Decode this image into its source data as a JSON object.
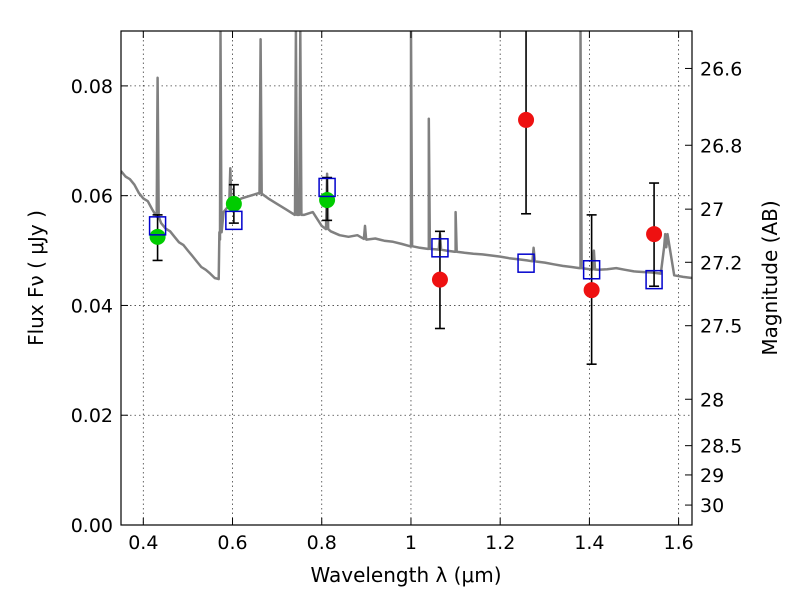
{
  "chart_data": {
    "type": "scatter",
    "title": "",
    "xlabel": "Wavelength  λ (μm)",
    "ylabel": "Flux  Fν  ( μJy )",
    "y2label": "Magnitude (AB)",
    "xlim": [
      0.35,
      1.63
    ],
    "ylim": [
      0.0,
      0.09
    ],
    "grid": true,
    "x_ticks": [
      0.4,
      0.6,
      0.8,
      1.0,
      1.2,
      1.4,
      1.6
    ],
    "x_tick_labels": [
      "0.4",
      "0.6",
      "0.8",
      "1",
      "1.2",
      "1.4",
      "1.6"
    ],
    "y_ticks": [
      0.0,
      0.02,
      0.04,
      0.06,
      0.08
    ],
    "y_tick_labels": [
      "0.00",
      "0.02",
      "0.04",
      "0.06",
      "0.08"
    ],
    "y2_ticks": [
      26.6,
      26.8,
      27,
      27.2,
      27.5,
      28,
      28.5,
      29,
      30
    ],
    "y2_tick_labels": [
      "26.6",
      "26.8",
      "27",
      "27.2",
      "27.5",
      "28",
      "28.5",
      "29",
      "30"
    ],
    "colors": {
      "model": "#808080",
      "green": "#00cc00",
      "red": "#ee1111",
      "box": "#0000cc",
      "errorbar": "#000000"
    },
    "model_spectrum": {
      "x": [
        0.35,
        0.36,
        0.37,
        0.38,
        0.39,
        0.4,
        0.41,
        0.42,
        0.43,
        0.44,
        0.45,
        0.46,
        0.47,
        0.48,
        0.49,
        0.5,
        0.51,
        0.52,
        0.53,
        0.54,
        0.55,
        0.56,
        0.569,
        0.572,
        0.575,
        0.58,
        0.59,
        0.6,
        0.62,
        0.64,
        0.66,
        0.68,
        0.7,
        0.72,
        0.74,
        0.76,
        0.78,
        0.8,
        0.82,
        0.84,
        0.86,
        0.88,
        0.9,
        0.92,
        0.94,
        0.96,
        0.98,
        1.0,
        1.02,
        1.04,
        1.06,
        1.08,
        1.1,
        1.12,
        1.14,
        1.16,
        1.18,
        1.2,
        1.22,
        1.24,
        1.26,
        1.28,
        1.3,
        1.32,
        1.34,
        1.36,
        1.38,
        1.4,
        1.42,
        1.44,
        1.46,
        1.48,
        1.5,
        1.52,
        1.54,
        1.56,
        1.575,
        1.59,
        1.61,
        1.63
      ],
      "y": [
        0.0645,
        0.0635,
        0.063,
        0.062,
        0.0605,
        0.0595,
        0.059,
        0.0575,
        0.0565,
        0.055,
        0.054,
        0.0535,
        0.0525,
        0.0515,
        0.051,
        0.05,
        0.049,
        0.048,
        0.047,
        0.0465,
        0.0458,
        0.045,
        0.0448,
        0.052,
        0.056,
        0.057,
        0.058,
        0.0585,
        0.0595,
        0.06,
        0.0605,
        0.0595,
        0.0585,
        0.0575,
        0.0565,
        0.0565,
        0.057,
        0.0545,
        0.0535,
        0.0528,
        0.0525,
        0.0528,
        0.052,
        0.0522,
        0.0518,
        0.0516,
        0.0512,
        0.0508,
        0.0505,
        0.0503,
        0.0502,
        0.05,
        0.0498,
        0.0496,
        0.0494,
        0.0493,
        0.0491,
        0.0489,
        0.0486,
        0.0484,
        0.0482,
        0.048,
        0.0478,
        0.0475,
        0.0472,
        0.047,
        0.0468,
        0.0466,
        0.0465,
        0.0466,
        0.0468,
        0.0465,
        0.0462,
        0.0461,
        0.046,
        0.0458,
        0.053,
        0.0455,
        0.0452,
        0.045
      ],
      "emission_lines": [
        {
          "x": 0.432,
          "peak": 0.0815
        },
        {
          "x": 0.573,
          "peak": 0.09
        },
        {
          "x": 0.595,
          "peak": 0.065
        },
        {
          "x": 0.663,
          "peak": 0.0885
        },
        {
          "x": 0.742,
          "peak": 0.09
        },
        {
          "x": 0.752,
          "peak": 0.09
        },
        {
          "x": 0.812,
          "peak": 0.064
        },
        {
          "x": 0.897,
          "peak": 0.0545
        },
        {
          "x": 1.0,
          "peak": 0.09
        },
        {
          "x": 1.04,
          "peak": 0.074
        },
        {
          "x": 1.065,
          "peak": 0.053
        },
        {
          "x": 1.1,
          "peak": 0.057
        },
        {
          "x": 1.275,
          "peak": 0.0505
        },
        {
          "x": 1.38,
          "peak": 0.09
        },
        {
          "x": 1.41,
          "peak": 0.05
        },
        {
          "x": 1.57,
          "peak": 0.053
        }
      ]
    },
    "series": [
      {
        "marker": "circle",
        "color": "green",
        "points": [
          {
            "x": 0.432,
            "y": 0.0525,
            "yerr_low": 0.0482,
            "yerr_high": 0.0565
          },
          {
            "x": 0.603,
            "y": 0.0585,
            "yerr_low": 0.055,
            "yerr_high": 0.062
          },
          {
            "x": 0.812,
            "y": 0.0592,
            "yerr_low": 0.0555,
            "yerr_high": 0.0633
          }
        ]
      },
      {
        "marker": "circle",
        "color": "red",
        "points": [
          {
            "x": 1.065,
            "y": 0.0447,
            "yerr_low": 0.0358,
            "yerr_high": 0.0535
          },
          {
            "x": 1.258,
            "y": 0.0738,
            "yerr_low": 0.0567,
            "yerr_high": 0.091
          },
          {
            "x": 1.405,
            "y": 0.0428,
            "yerr_low": 0.0293,
            "yerr_high": 0.0565
          },
          {
            "x": 1.545,
            "y": 0.053,
            "yerr_low": 0.0435,
            "yerr_high": 0.0623
          }
        ]
      },
      {
        "marker": "open-square",
        "color": "box",
        "points": [
          {
            "x": 0.432,
            "y": 0.0545
          },
          {
            "x": 0.603,
            "y": 0.0555
          },
          {
            "x": 0.812,
            "y": 0.0615
          },
          {
            "x": 1.065,
            "y": 0.0505
          },
          {
            "x": 1.258,
            "y": 0.0477
          },
          {
            "x": 1.405,
            "y": 0.0465
          },
          {
            "x": 1.545,
            "y": 0.0447
          }
        ]
      }
    ]
  }
}
